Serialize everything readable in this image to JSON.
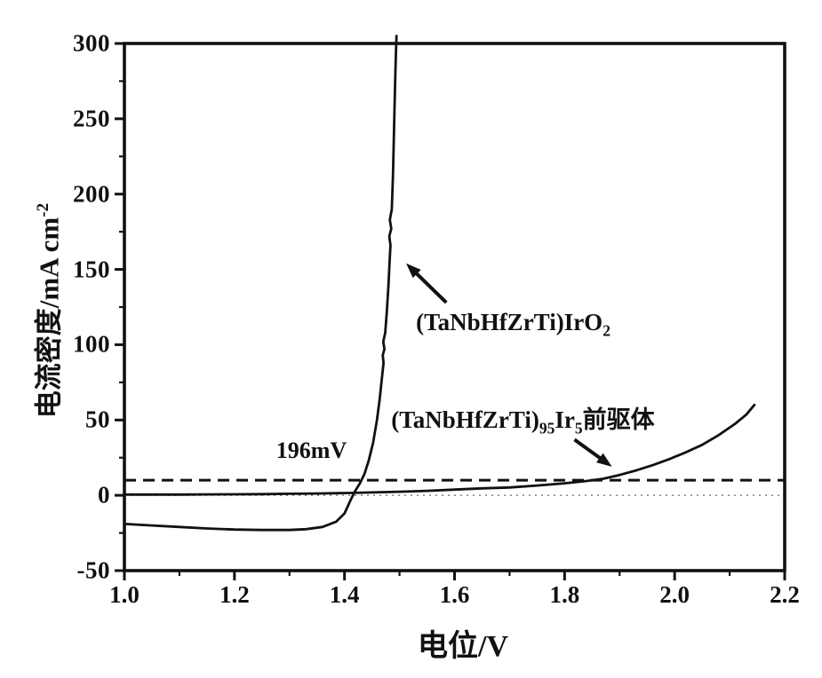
{
  "colors": {
    "axis": "#111111",
    "curve": "#111111",
    "dashed_reference": "#111111",
    "zero_dotted": "#777777",
    "background": "#ffffff"
  },
  "chart_data": {
    "type": "line",
    "title": "",
    "xlabel": "电位/V",
    "ylabel": "电流密度/mA cm⁻²",
    "ylabel_main": "电流密度/mA cm",
    "ylabel_sup": "-2",
    "xlim": [
      1.0,
      2.2
    ],
    "ylim": [
      -50,
      300
    ],
    "x_ticks": [
      "1.0",
      "1.2",
      "1.4",
      "1.6",
      "1.8",
      "2.0",
      "2.2"
    ],
    "x_minor_ticks": [
      1.1,
      1.3,
      1.5,
      1.7,
      1.9,
      2.1
    ],
    "y_ticks": [
      "300",
      "250",
      "200",
      "150",
      "100",
      "50",
      "0",
      "-50"
    ],
    "y_minor_ticks": [
      275,
      225,
      175,
      125,
      75,
      25,
      -25
    ],
    "grid": false,
    "legend_position": "none",
    "series": [
      {
        "name": "(TaNbHfZrTi)IrO2",
        "points": [
          [
            1.0,
            -19.0
          ],
          [
            1.05,
            -20.0
          ],
          [
            1.1,
            -21.0
          ],
          [
            1.15,
            -22.0
          ],
          [
            1.2,
            -22.7
          ],
          [
            1.25,
            -23.0
          ],
          [
            1.3,
            -23.0
          ],
          [
            1.33,
            -22.5
          ],
          [
            1.36,
            -21.0
          ],
          [
            1.385,
            -17.5
          ],
          [
            1.4,
            -12.0
          ],
          [
            1.41,
            -4.0
          ],
          [
            1.418,
            2.0
          ],
          [
            1.428,
            8.0
          ],
          [
            1.436,
            14.0
          ],
          [
            1.444,
            23.0
          ],
          [
            1.452,
            35.0
          ],
          [
            1.459,
            50.0
          ],
          [
            1.464,
            64.0
          ],
          [
            1.468,
            78.0
          ],
          [
            1.471,
            88.0
          ],
          [
            1.4695,
            93.0
          ],
          [
            1.4725,
            97.0
          ],
          [
            1.4705,
            102.0
          ],
          [
            1.474,
            108.0
          ],
          [
            1.477,
            122.0
          ],
          [
            1.48,
            140.0
          ],
          [
            1.482,
            155.0
          ],
          [
            1.4835,
            166.0
          ],
          [
            1.4815,
            172.0
          ],
          [
            1.485,
            177.0
          ],
          [
            1.4825,
            183.0
          ],
          [
            1.486,
            190.0
          ],
          [
            1.488,
            212.0
          ],
          [
            1.4895,
            235.0
          ],
          [
            1.491,
            258.0
          ],
          [
            1.4925,
            280.0
          ],
          [
            1.4935,
            295.0
          ],
          [
            1.4945,
            305.0
          ]
        ]
      },
      {
        "name": "(TaNbHfZrTi)95Ir5前驱体",
        "points": [
          [
            1.0,
            0.5
          ],
          [
            1.05,
            0.5
          ],
          [
            1.1,
            0.5
          ],
          [
            1.15,
            0.6
          ],
          [
            1.2,
            0.7
          ],
          [
            1.25,
            0.8
          ],
          [
            1.3,
            1.0
          ],
          [
            1.35,
            1.2
          ],
          [
            1.4,
            1.5
          ],
          [
            1.45,
            1.9
          ],
          [
            1.5,
            2.4
          ],
          [
            1.55,
            3.0
          ],
          [
            1.6,
            3.8
          ],
          [
            1.65,
            4.6
          ],
          [
            1.7,
            5.2
          ],
          [
            1.75,
            6.5
          ],
          [
            1.8,
            8.0
          ],
          [
            1.84,
            9.5
          ],
          [
            1.87,
            11.0
          ],
          [
            1.9,
            13.5
          ],
          [
            1.93,
            16.5
          ],
          [
            1.96,
            20.0
          ],
          [
            1.99,
            24.0
          ],
          [
            2.02,
            28.5
          ],
          [
            2.05,
            33.5
          ],
          [
            2.08,
            40.0
          ],
          [
            2.11,
            47.5
          ],
          [
            2.13,
            53.5
          ],
          [
            2.145,
            60.0
          ]
        ]
      }
    ],
    "reference_lines": [
      {
        "y": 10,
        "style": "dashed",
        "meaning": "current density reference crossed at 196mV overpotential"
      },
      {
        "y": 0,
        "style": "dotted",
        "meaning": "zero current line"
      }
    ],
    "annotations": [
      {
        "text": "196mV",
        "x": 1.34,
        "y": 21,
        "align": "center",
        "valign": "bottom"
      },
      {
        "label": "(TaNbHfZrTi)IrO2",
        "main": "(TaNbHfZrTi)IrO",
        "sub": "2",
        "x": 1.53,
        "y": 124,
        "align": "left",
        "valign": "top"
      },
      {
        "label": "(TaNbHfZrTi)95Ir5前驱体",
        "m1": "(TaNbHfZrTi)",
        "s1": "95",
        "m2": "Ir",
        "s2": "5",
        "m3": "前驱体",
        "x": 1.485,
        "y": 63,
        "align": "left",
        "valign": "top"
      }
    ],
    "arrows": [
      {
        "from": [
          1.585,
          128
        ],
        "to": [
          1.512,
          154
        ],
        "points_to": "(TaNbHfZrTi)IrO2 curve"
      },
      {
        "from": [
          1.818,
          37
        ],
        "to": [
          1.886,
          19
        ],
        "points_to": "(TaNbHfZrTi)95Ir5 precursor curve"
      }
    ]
  }
}
